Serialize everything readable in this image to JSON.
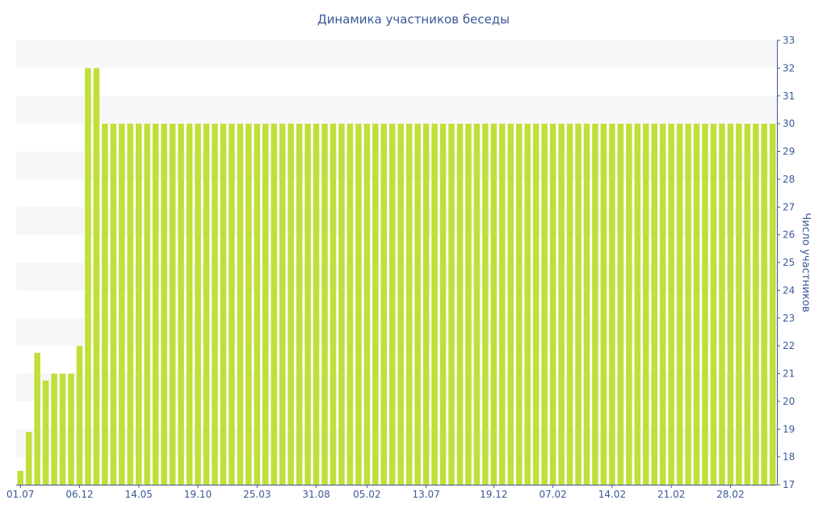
{
  "chart_data": {
    "type": "bar",
    "title": "Динамика участников беседы",
    "xlabel": "",
    "ylabel": "Число участников",
    "ylim": [
      17,
      33
    ],
    "yticks": [
      17,
      18,
      19,
      20,
      21,
      22,
      23,
      24,
      25,
      26,
      27,
      28,
      29,
      30,
      31,
      32,
      33
    ],
    "y_axis_position": "right",
    "grid": "alternating-bands",
    "bar_color": "#c0df3a",
    "band_color": "#f7f7f7",
    "text_color": "#3b5998",
    "axis_color": "#3b5998",
    "x_tick_labels": [
      {
        "index": 0,
        "label": "01.07"
      },
      {
        "index": 7,
        "label": "06.12"
      },
      {
        "index": 14,
        "label": "14.05"
      },
      {
        "index": 21,
        "label": "19.10"
      },
      {
        "index": 28,
        "label": "25.03"
      },
      {
        "index": 35,
        "label": "31.08"
      },
      {
        "index": 41,
        "label": "05.02"
      },
      {
        "index": 48,
        "label": "13.07"
      },
      {
        "index": 56,
        "label": "19.12"
      },
      {
        "index": 63,
        "label": "07.02"
      },
      {
        "index": 70,
        "label": "14.02"
      },
      {
        "index": 77,
        "label": "21.02"
      },
      {
        "index": 84,
        "label": "28.02"
      }
    ],
    "values": [
      17.5,
      18.9,
      21.75,
      20.75,
      21,
      21,
      21,
      22,
      32,
      32,
      30,
      30,
      30,
      30,
      30,
      30,
      30,
      30,
      30,
      30,
      30,
      30,
      30,
      30,
      30,
      30,
      30,
      30,
      30,
      30,
      30,
      30,
      30,
      30,
      30,
      30,
      30,
      30,
      30,
      30,
      30,
      30,
      30,
      30,
      30,
      30,
      30,
      30,
      30,
      30,
      30,
      30,
      30,
      30,
      30,
      30,
      30,
      30,
      30,
      30,
      30,
      30,
      30,
      30,
      30,
      30,
      30,
      30,
      30,
      30,
      30,
      30,
      30,
      30,
      30,
      30,
      30,
      30,
      30,
      30,
      30,
      30,
      30,
      30,
      30,
      30,
      30,
      30,
      30,
      30
    ]
  }
}
